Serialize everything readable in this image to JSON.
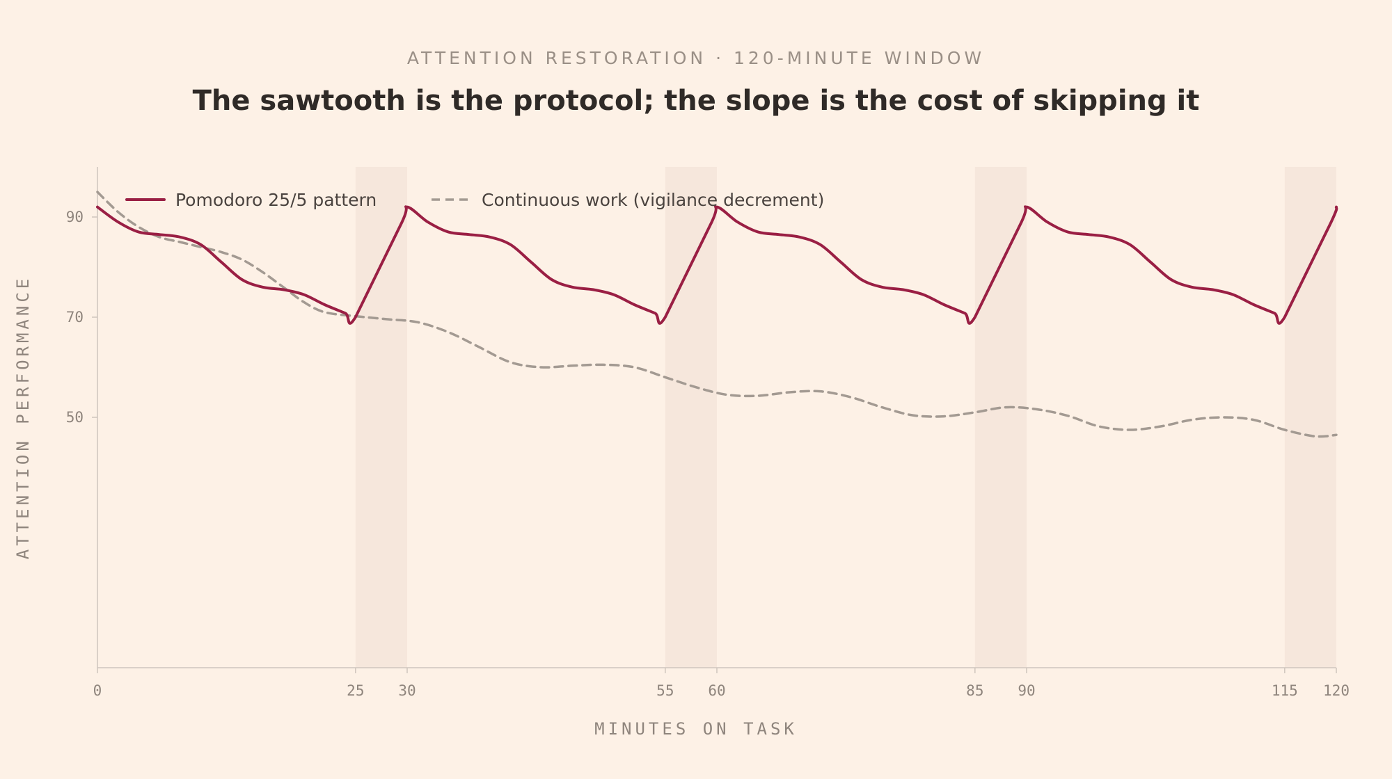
{
  "chart_data": {
    "type": "line",
    "subtitle": "ATTENTION RESTORATION · 120-MINUTE WINDOW",
    "title": "The sawtooth is the protocol; the slope is the cost of skipping it",
    "xlabel": "MINUTES ON TASK",
    "ylabel": "ATTENTION PERFORMANCE",
    "xlim": [
      0,
      120
    ],
    "ylim": [
      0,
      100
    ],
    "x_ticks": [
      0,
      25,
      30,
      55,
      60,
      85,
      90,
      115,
      120
    ],
    "y_ticks": [
      50,
      70,
      90
    ],
    "break_periods": [
      [
        25,
        30
      ],
      [
        55,
        60
      ],
      [
        85,
        90
      ],
      [
        115,
        120
      ]
    ],
    "legend_position": "top-left",
    "colors": {
      "pomodoro": "#9a1f44",
      "continuous": "#a39a92",
      "break_band": "#f6e7dc",
      "axis": "#cfc5bd"
    },
    "series": [
      {
        "name": "Pomodoro 25/5 pattern",
        "style": "solid",
        "x": [
          0,
          2,
          4,
          6,
          8,
          10,
          12,
          14,
          16,
          18,
          20,
          22,
          24,
          25,
          29.5,
          30,
          32,
          34,
          36,
          38,
          40,
          42,
          44,
          46,
          48,
          50,
          52,
          54,
          55,
          59.5,
          60,
          62,
          64,
          66,
          68,
          70,
          72,
          74,
          76,
          78,
          80,
          82,
          84,
          85,
          89.5,
          90,
          92,
          94,
          96,
          98,
          100,
          102,
          104,
          106,
          108,
          110,
          112,
          114,
          115,
          119.5,
          120
        ],
        "y": [
          92,
          89,
          87,
          86.5,
          86,
          84.5,
          81,
          77.5,
          76,
          75.5,
          74.5,
          72.5,
          70.8,
          70,
          89,
          92,
          89,
          87,
          86.5,
          86,
          84.5,
          81,
          77.5,
          76,
          75.5,
          74.5,
          72.5,
          70.8,
          70,
          89,
          92,
          89,
          87,
          86.5,
          86,
          84.5,
          81,
          77.5,
          76,
          75.5,
          74.5,
          72.5,
          70.8,
          70,
          89,
          92,
          89,
          87,
          86.5,
          86,
          84.5,
          81,
          77.5,
          76,
          75.5,
          74.5,
          72.5,
          70.8,
          70,
          89,
          92
        ]
      },
      {
        "name": "Continuous work (vigilance decrement)",
        "style": "dashed",
        "x": [
          0,
          2,
          4,
          6,
          8,
          10,
          12,
          14,
          16,
          18,
          20,
          22,
          25,
          28,
          31,
          34,
          37,
          40,
          43,
          46,
          49,
          52,
          55,
          58,
          61,
          64,
          67,
          70,
          73,
          76,
          79,
          82,
          85,
          88,
          91,
          94,
          97,
          100,
          103,
          106,
          109,
          112,
          115,
          118,
          120
        ],
        "y": [
          95,
          91,
          88,
          86,
          85,
          84,
          83,
          81.5,
          79,
          76,
          73,
          71,
          70.2,
          69.6,
          69,
          67,
          64,
          61,
          60,
          60.3,
          60.5,
          60,
          58,
          56,
          54.5,
          54.3,
          55,
          55.2,
          54,
          52,
          50.4,
          50.2,
          51,
          52,
          51.6,
          50.3,
          48.2,
          47.5,
          48.2,
          49.5,
          50,
          49.5,
          47.5,
          46.2,
          46.5
        ]
      }
    ]
  }
}
